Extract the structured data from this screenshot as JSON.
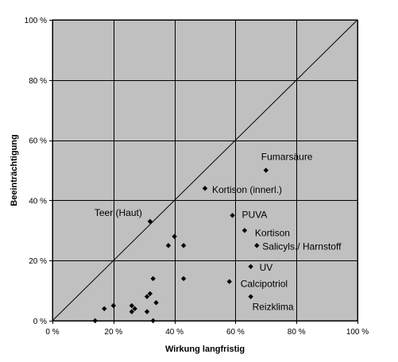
{
  "chart_data": {
    "type": "scatter",
    "title": "",
    "xlabel": "Wirkung langfristig",
    "ylabel": "Beeinträchtigung",
    "xlim": [
      0,
      100
    ],
    "ylim": [
      0,
      100
    ],
    "x_ticks": [
      0,
      20,
      40,
      60,
      80,
      100
    ],
    "y_ticks": [
      0,
      20,
      40,
      60,
      80,
      100
    ],
    "x_tick_labels": [
      "0 %",
      "20 %",
      "40 %",
      "60 %",
      "80 %",
      "100 %"
    ],
    "y_tick_labels": [
      "0 %",
      "20 %",
      "40 %",
      "60 %",
      "80 %",
      "100 %"
    ],
    "grid": true,
    "legend": "none",
    "reference_line": {
      "from": [
        0,
        0
      ],
      "to": [
        100,
        100
      ]
    },
    "colors": {
      "plot_background": "#c0c0c0",
      "grid": "#000000",
      "marker": "#000000",
      "background": "#ffffff"
    },
    "points": [
      {
        "x": 70,
        "y": 50,
        "label": "Fumarsäure"
      },
      {
        "x": 50,
        "y": 44,
        "label": "Kortison (innerl.)"
      },
      {
        "x": 59,
        "y": 35,
        "label": "PUVA"
      },
      {
        "x": 63,
        "y": 30,
        "label": "Kortison"
      },
      {
        "x": 67,
        "y": 25,
        "label": "Salicyls./ Harnstoff"
      },
      {
        "x": 65,
        "y": 18,
        "label": "UV"
      },
      {
        "x": 58,
        "y": 13,
        "label": "Calcipotriol"
      },
      {
        "x": 65,
        "y": 8,
        "label": "Reizklima"
      },
      {
        "x": 32,
        "y": 33,
        "label": "Teer  (Haut)"
      },
      {
        "x": 40,
        "y": 28
      },
      {
        "x": 38,
        "y": 25
      },
      {
        "x": 43,
        "y": 25
      },
      {
        "x": 43,
        "y": 14
      },
      {
        "x": 33,
        "y": 14
      },
      {
        "x": 31,
        "y": 8
      },
      {
        "x": 32,
        "y": 9
      },
      {
        "x": 34,
        "y": 6
      },
      {
        "x": 26,
        "y": 5
      },
      {
        "x": 27,
        "y": 4
      },
      {
        "x": 26,
        "y": 3
      },
      {
        "x": 31,
        "y": 3
      },
      {
        "x": 20,
        "y": 5
      },
      {
        "x": 17,
        "y": 4
      },
      {
        "x": 14,
        "y": 0
      },
      {
        "x": 33,
        "y": 0
      }
    ]
  }
}
